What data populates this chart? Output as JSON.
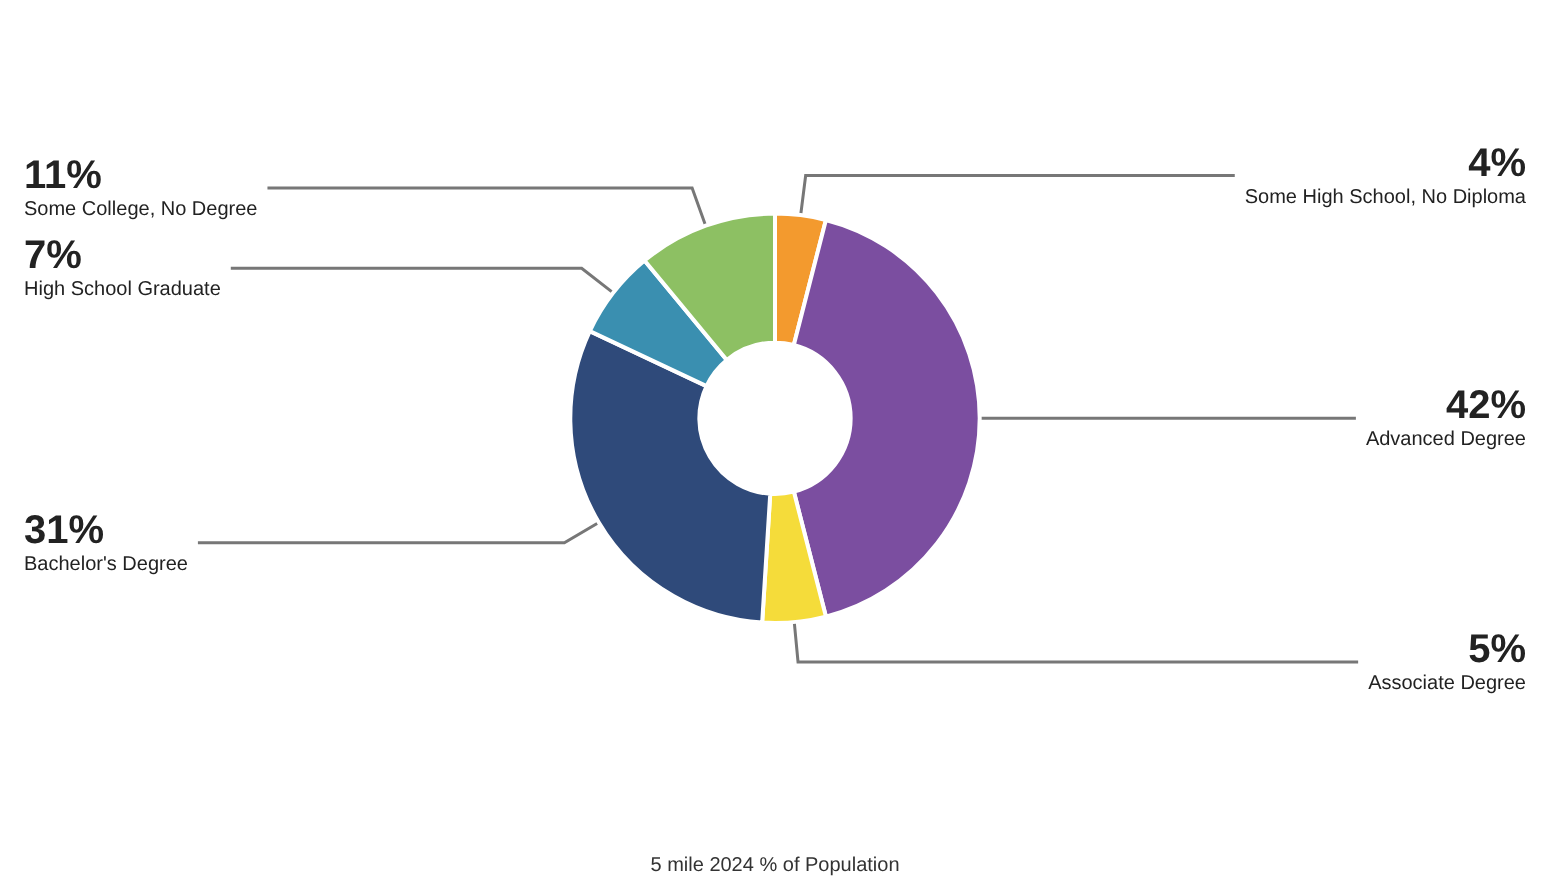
{
  "chart_data": {
    "type": "donut",
    "title": "5 mile 2024 % of Population",
    "categories": [
      "Some High School, No Diploma",
      "Advanced Degree",
      "Associate Degree",
      "Bachelor's Degree",
      "High School Graduate",
      "Some College, No Degree"
    ],
    "values": [
      4,
      42,
      5,
      31,
      7,
      11
    ],
    "value_labels": [
      "4%",
      "42%",
      "5%",
      "31%",
      "7%",
      "11%"
    ],
    "colors": [
      "#f39a2e",
      "#7b4ea0",
      "#f5dc3a",
      "#2f4a7a",
      "#3a8fb0",
      "#8dc063"
    ],
    "legend": false
  }
}
